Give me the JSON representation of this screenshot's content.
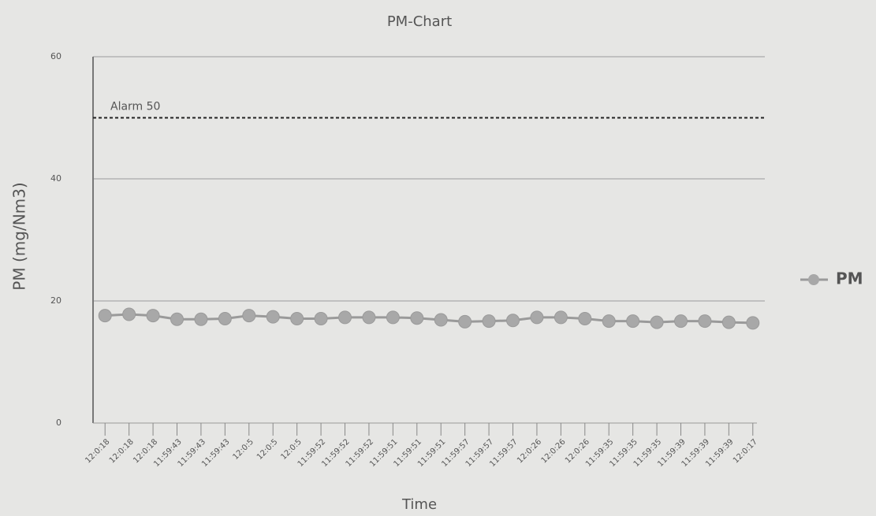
{
  "chart_data": {
    "type": "line",
    "title": "PM-Chart",
    "x_label": "Time",
    "y_label": "PM (mg/Nm3)",
    "categories": [
      "12:0:18",
      "12:0:18",
      "12:0:18",
      "11:59:43",
      "11:59:43",
      "11:59:43",
      "12:0:5",
      "12:0:5",
      "12:0:5",
      "11:59:52",
      "11:59:52",
      "11:59:52",
      "11:59:51",
      "11:59:51",
      "11:59:51",
      "11:59:57",
      "11:59:57",
      "11:59:57",
      "12:0:26",
      "12:0:26",
      "12:0:26",
      "11:59:35",
      "11:59:35",
      "11:59:35",
      "11:59:39",
      "11:59:39",
      "11:59:39",
      "12:0:17"
    ],
    "series": [
      {
        "name": "PM",
        "color": "#9a9a9a",
        "values": [
          17.6,
          17.8,
          17.6,
          17.0,
          17.0,
          17.1,
          17.6,
          17.4,
          17.1,
          17.1,
          17.3,
          17.3,
          17.3,
          17.2,
          16.9,
          16.6,
          16.7,
          16.8,
          17.3,
          17.3,
          17.1,
          16.7,
          16.7,
          16.5,
          16.7,
          16.7,
          16.5,
          16.4
        ]
      }
    ],
    "alarm": {
      "label": "Alarm 50",
      "value": 50
    },
    "ylim": [
      0,
      60
    ],
    "yticks": [
      0,
      20,
      40,
      60
    ],
    "grid": true,
    "legend": "right"
  }
}
